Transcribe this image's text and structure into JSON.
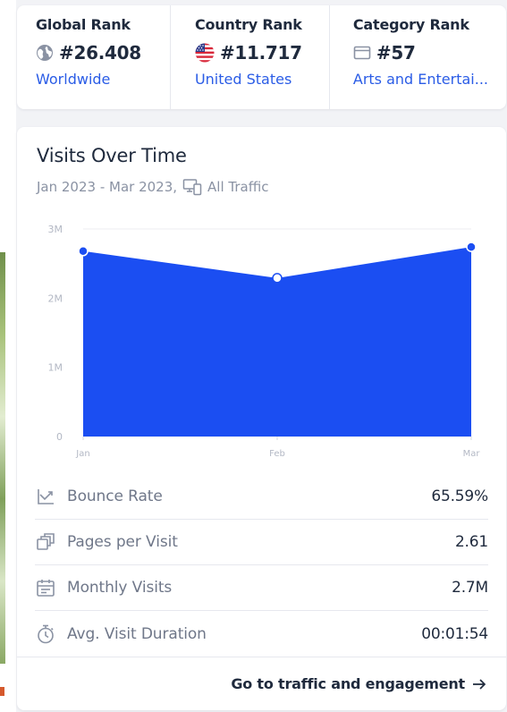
{
  "ranks": [
    {
      "title": "Global Rank",
      "value": "#26.408",
      "link": "Worldwide",
      "icon": "globe-icon"
    },
    {
      "title": "Country Rank",
      "value": "#11.717",
      "link": "United States",
      "icon": "us-flag-icon"
    },
    {
      "title": "Category Rank",
      "value": "#57",
      "link": "Arts and Entertai...",
      "icon": "category-icon"
    }
  ],
  "visits": {
    "title": "Visits Over Time",
    "period": "Jan 2023 - Mar 2023,",
    "traffic": "All Traffic"
  },
  "chart_data": {
    "type": "area",
    "categories": [
      "Jan",
      "Feb",
      "Mar"
    ],
    "values": [
      2680000,
      2290000,
      2740000
    ],
    "ylim": [
      0,
      3000000
    ],
    "yticks": [
      {
        "value": 0,
        "label": "0"
      },
      {
        "value": 1000000,
        "label": "1M"
      },
      {
        "value": 2000000,
        "label": "2M"
      },
      {
        "value": 3000000,
        "label": "3M"
      }
    ],
    "grid": true,
    "color": "#1b4ef2"
  },
  "metrics": [
    {
      "label": "Bounce Rate",
      "value": "65.59%",
      "icon": "bounce-rate-icon"
    },
    {
      "label": "Pages per Visit",
      "value": "2.61",
      "icon": "pages-icon"
    },
    {
      "label": "Monthly Visits",
      "value": "2.7M",
      "icon": "calendar-icon"
    },
    {
      "label": "Avg. Visit Duration",
      "value": "00:01:54",
      "icon": "stopwatch-icon"
    }
  ],
  "footer": {
    "link": "Go to traffic and engagement"
  }
}
